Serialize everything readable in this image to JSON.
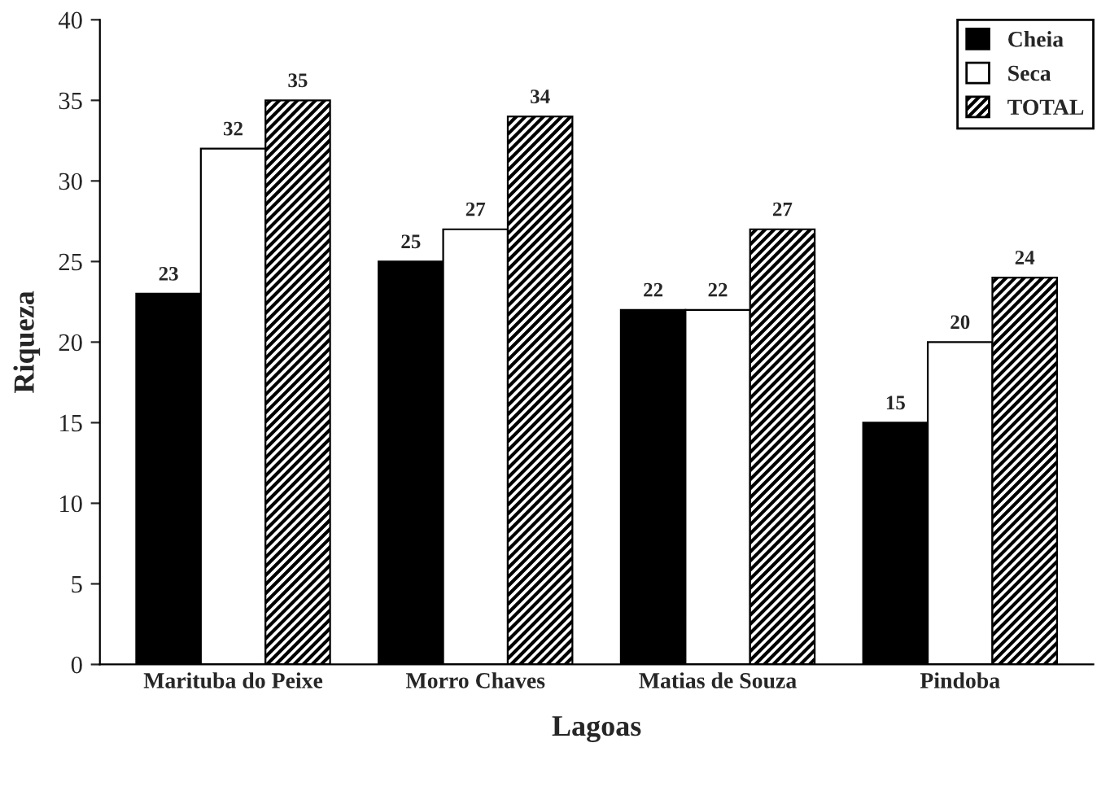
{
  "chart_data": {
    "type": "bar",
    "xlabel": "Lagoas",
    "ylabel": "Riqueza",
    "categories": [
      "Marituba do Peixe",
      "Morro Chaves",
      "Matias de Souza",
      "Pindoba"
    ],
    "series": [
      {
        "name": "Cheia",
        "color": "#000000",
        "values": [
          23,
          25,
          22,
          15
        ]
      },
      {
        "name": "Seca",
        "color": "#ffffff",
        "values": [
          32,
          27,
          22,
          20
        ]
      },
      {
        "name": "TOTAL",
        "color": "#000000",
        "values": [
          35,
          34,
          27,
          24
        ]
      }
    ],
    "ylim": [
      0,
      40
    ],
    "yticks": [
      0,
      5,
      10,
      15,
      20,
      25,
      30,
      35,
      40
    ],
    "data_labels": true,
    "legend": "top right",
    "grid": false
  }
}
